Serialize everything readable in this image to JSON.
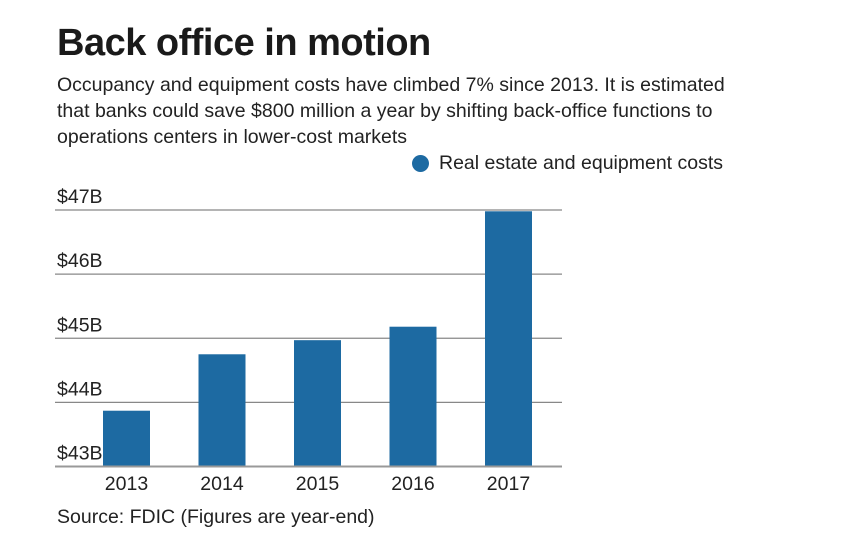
{
  "title": "Back office in motion",
  "subtitle": "Occupancy and equipment costs have climbed 7% since 2013. It is estimated that banks could save $800 million a year by shifting back-office functions to operations centers in lower-cost markets",
  "source": "Source: FDIC (Figures are year-end)",
  "chart_data": {
    "type": "bar",
    "categories": [
      "2013",
      "2014",
      "2015",
      "2016",
      "2017"
    ],
    "series": [
      {
        "name": "Real estate and equipment costs",
        "values": [
          43.87,
          44.75,
          44.97,
          45.18,
          46.98
        ],
        "color": "#1d6aa2"
      }
    ],
    "ylim": [
      43,
      47
    ],
    "yticks": [
      43,
      44,
      45,
      46,
      47
    ],
    "ytick_labels": [
      "$43B",
      "$44B",
      "$45B",
      "$46B",
      "$47B"
    ],
    "grid": true,
    "legend_position": "top-right",
    "xlabel": "",
    "ylabel": ""
  }
}
